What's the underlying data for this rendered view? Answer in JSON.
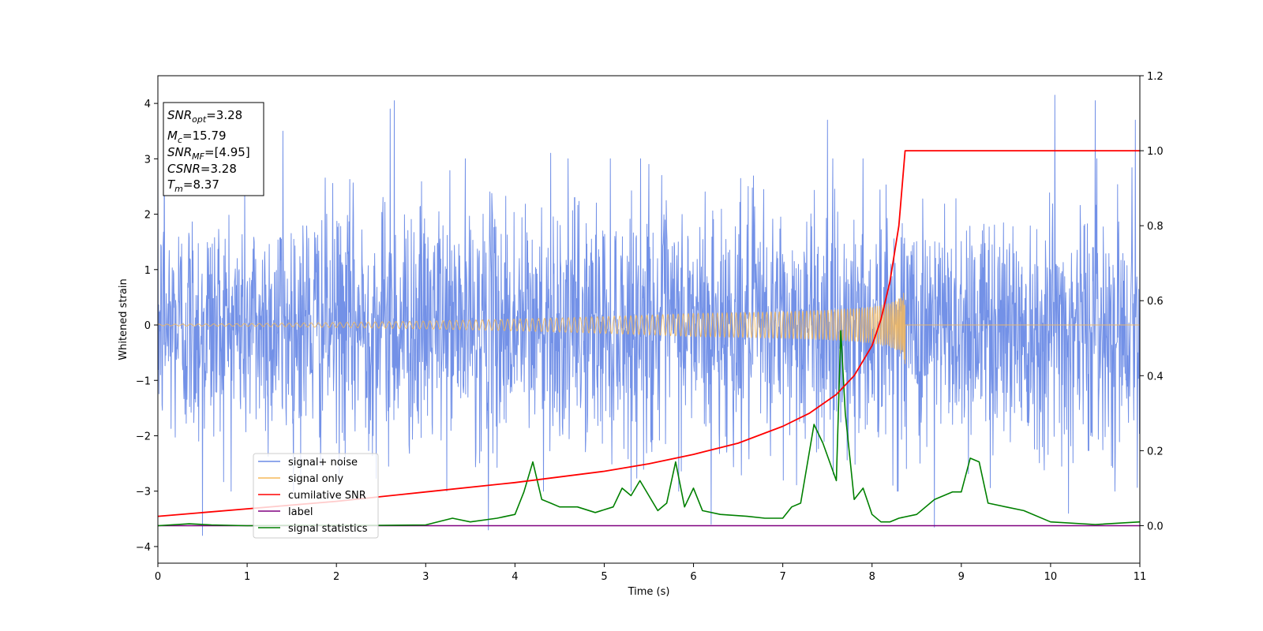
{
  "chart_data": {
    "type": "line",
    "xlabel": "Time (s)",
    "ylabel": "Whitened strain",
    "xlim": [
      0,
      11
    ],
    "ylim": [
      -4.3,
      4.5
    ],
    "y2lim": [
      -0.1,
      1.2
    ],
    "x_ticks": [
      "0",
      "1",
      "2",
      "3",
      "4",
      "5",
      "6",
      "7",
      "8",
      "9",
      "10",
      "11"
    ],
    "y_ticks": [
      "4",
      "3",
      "2",
      "1",
      "0",
      "−1",
      "−2",
      "−3",
      "−4"
    ],
    "y2_ticks": [
      "1.2",
      "1.0",
      "0.8",
      "0.6",
      "0.4",
      "0.2",
      "0.0"
    ],
    "grid": false,
    "legend_position": "lower-left",
    "colors": {
      "signal_noise": "#6b8be6",
      "signal_only": "#f5b95a",
      "cumulative_snr": "#ff0000",
      "label": "#800080",
      "signal_statistics": "#008000"
    },
    "series": [
      {
        "name": "signal+ noise",
        "axis": "left",
        "description_values": {
          "noise_sigma": 1.1,
          "max": 4.15,
          "min": -3.8,
          "spikes_up": [
            [
              0.07,
              3.6
            ],
            [
              1.4,
              3.5
            ],
            [
              2.65,
              4.05
            ],
            [
              2.6,
              3.9
            ],
            [
              4.4,
              3.1
            ],
            [
              5.5,
              2.9
            ],
            [
              7.5,
              3.7
            ],
            [
              7.9,
              3.0
            ],
            [
              10.05,
              4.15
            ],
            [
              10.5,
              4.05
            ],
            [
              10.95,
              3.7
            ]
          ],
          "spikes_down": [
            [
              0.5,
              -3.8
            ],
            [
              3.7,
              -3.7
            ],
            [
              6.2,
              -3.6
            ],
            [
              8.7,
              -3.65
            ],
            [
              10.2,
              -3.4
            ]
          ]
        }
      },
      {
        "name": "signal only",
        "axis": "left",
        "chirp": {
          "t_merge": 8.37,
          "peak_amplitude": 0.7,
          "start": 0
        }
      },
      {
        "name": "cumilative SNR",
        "axis": "right",
        "x": [
          0,
          1,
          2,
          3,
          4,
          5,
          5.5,
          6,
          6.5,
          7,
          7.3,
          7.6,
          7.8,
          8.0,
          8.1,
          8.2,
          8.3,
          8.37,
          8.38,
          11
        ],
        "y": [
          0.025,
          0.045,
          0.065,
          0.09,
          0.115,
          0.145,
          0.165,
          0.19,
          0.22,
          0.265,
          0.3,
          0.35,
          0.4,
          0.48,
          0.55,
          0.65,
          0.8,
          1.0,
          1.0,
          1.0
        ]
      },
      {
        "name": "label",
        "axis": "right",
        "x": [
          0,
          11
        ],
        "y": [
          0,
          0
        ]
      },
      {
        "name": "signal statistics",
        "axis": "right",
        "x": [
          0,
          0.35,
          0.6,
          1.0,
          1.5,
          2.0,
          2.5,
          3.0,
          3.3,
          3.5,
          3.8,
          4.0,
          4.1,
          4.2,
          4.3,
          4.4,
          4.5,
          4.7,
          4.9,
          5.1,
          5.2,
          5.3,
          5.4,
          5.5,
          5.6,
          5.7,
          5.8,
          5.9,
          6.0,
          6.1,
          6.3,
          6.6,
          6.8,
          7.0,
          7.1,
          7.2,
          7.35,
          7.45,
          7.6,
          7.65,
          7.7,
          7.8,
          7.9,
          8.0,
          8.1,
          8.2,
          8.3,
          8.5,
          8.7,
          8.9,
          9.0,
          9.1,
          9.2,
          9.3,
          9.5,
          9.7,
          10.0,
          10.5,
          11.0
        ],
        "y": [
          0.0,
          0.005,
          0.002,
          0.0,
          0.001,
          0.001,
          0.001,
          0.002,
          0.02,
          0.01,
          0.02,
          0.03,
          0.09,
          0.17,
          0.07,
          0.06,
          0.05,
          0.05,
          0.035,
          0.05,
          0.1,
          0.08,
          0.12,
          0.08,
          0.04,
          0.06,
          0.17,
          0.05,
          0.1,
          0.04,
          0.03,
          0.025,
          0.02,
          0.02,
          0.05,
          0.06,
          0.27,
          0.22,
          0.12,
          0.52,
          0.3,
          0.07,
          0.1,
          0.03,
          0.01,
          0.01,
          0.02,
          0.03,
          0.07,
          0.09,
          0.09,
          0.18,
          0.17,
          0.06,
          0.05,
          0.04,
          0.01,
          0.003,
          0.01
        ]
      }
    ],
    "info_box": {
      "line1_sym": "SNR",
      "line1_sub": "opt",
      "line1_val": "=3.28",
      "line2_sym": "M",
      "line2_sub": "c",
      "line2_val": "=15.79",
      "line3_sym": "SNR",
      "line3_sub": "MF",
      "line3_val": "=[4.95]",
      "line4_sym": "CSNR",
      "line4_val": "=3.28",
      "line5_sym": "T",
      "line5_sub": "m",
      "line5_val": "=8.37"
    }
  }
}
